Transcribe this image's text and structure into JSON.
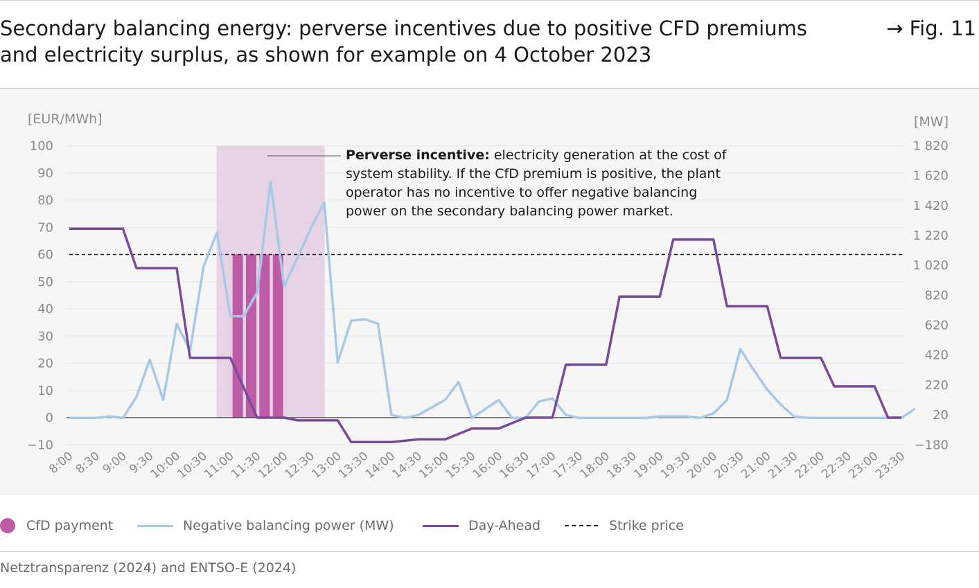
{
  "header": {
    "title_line1": "Secondary balancing energy: perverse incentives due to positive CFD premiums",
    "title_line2": "and electricity surplus, as shown for example on 4 October 2023",
    "fig_label": "→ Fig. 11"
  },
  "source": "Netztransparenz (2024) and ENTSO-E (2024)",
  "colors": {
    "cfd": "#bd5ba6",
    "cfd_band": "#e6d4e6",
    "balancing": "#a8c8e8",
    "day_ahead": "#7a4a9a",
    "strike": "#1a1a1a",
    "panel": "#f6f6f6"
  },
  "annotation": {
    "bold": "Perverse incentive:",
    "line1": " electricity generation at the cost of",
    "line2": "system stability. If the CfD premium is positive, the plant",
    "line3": "operator has no incentive to offer negative balancing",
    "line4": "power on the secondary balancing power market."
  },
  "legend": {
    "cfd": "CfD payment",
    "balancing": "Negative balancing power (MW)",
    "day_ahead": "Day-Ahead",
    "strike": "Strike price"
  },
  "chart_data": {
    "type": "line",
    "left_axis": {
      "label": "[EUR/MWh]",
      "ticks": [
        100,
        90,
        80,
        70,
        60,
        50,
        40,
        30,
        20,
        10,
        0,
        -10
      ],
      "tick_labels": [
        "100",
        "90",
        "80",
        "70",
        "60",
        "50",
        "40",
        "30",
        "20",
        "10",
        "0",
        "−10"
      ],
      "range": [
        -10,
        100
      ]
    },
    "right_axis": {
      "label": "[MW]",
      "ticks": [
        1820,
        1620,
        1420,
        1220,
        1020,
        820,
        620,
        420,
        220,
        20,
        -180
      ],
      "tick_labels": [
        "1 820",
        "1 620",
        "1 420",
        "1 220",
        "1 020",
        "820",
        "620",
        "420",
        "220",
        "20",
        "−180"
      ],
      "range": [
        -180,
        1820
      ]
    },
    "x_labels": [
      "8:00",
      "8:30",
      "9:00",
      "9:30",
      "10:00",
      "10:30",
      "11:00",
      "11:30",
      "12:00",
      "12:30",
      "13:00",
      "13:30",
      "14:00",
      "14:30",
      "15:00",
      "15:30",
      "16:00",
      "16:30",
      "17:00",
      "17:30",
      "18:00",
      "18:30",
      "19:00",
      "19:30",
      "20:00",
      "20:30",
      "21:00",
      "21:30",
      "22:00",
      "22:30",
      "23:00",
      "23:30"
    ],
    "strike_price": 60,
    "cfd_window": {
      "start": "10:45",
      "end": "12:45"
    },
    "cfd_bars": [
      {
        "time": "11:00",
        "value": 60
      },
      {
        "time": "11:15",
        "value": 60
      },
      {
        "time": "11:30",
        "value": 60
      },
      {
        "time": "11:45",
        "value": 60
      }
    ],
    "series": [
      {
        "name": "Day-Ahead",
        "axis": "left",
        "times": [
          "8:00",
          "9:00",
          "9:15",
          "10:00",
          "10:15",
          "11:00",
          "11:30",
          "12:00",
          "12:15",
          "12:30",
          "13:00",
          "13:15",
          "14:00",
          "14:30",
          "15:00",
          "15:30",
          "16:00",
          "16:30",
          "17:00",
          "17:15",
          "18:00",
          "18:15",
          "19:00",
          "19:15",
          "20:00",
          "20:15",
          "21:00",
          "21:15",
          "22:00",
          "22:15",
          "23:00",
          "23:15",
          "23:30"
        ],
        "values": [
          69.5,
          69.5,
          55,
          55,
          22,
          22,
          0,
          0,
          -1,
          -1,
          -1,
          -9,
          -9,
          -8,
          -8,
          -4,
          -4,
          0,
          0,
          19.5,
          19.5,
          44.5,
          44.5,
          65.5,
          65.5,
          41,
          41,
          22,
          22,
          11.5,
          11.5,
          0,
          0
        ]
      },
      {
        "name": "Negative balancing power (MW)",
        "axis": "right",
        "times": [
          "8:00",
          "8:15",
          "8:30",
          "8:45",
          "9:00",
          "9:15",
          "9:30",
          "9:45",
          "10:00",
          "10:15",
          "10:30",
          "10:45",
          "11:00",
          "11:15",
          "11:30",
          "11:45",
          "12:00",
          "12:15",
          "12:30",
          "12:45",
          "13:00",
          "13:15",
          "13:30",
          "13:45",
          "14:00",
          "14:15",
          "14:30",
          "14:45",
          "15:00",
          "15:15",
          "15:30",
          "15:45",
          "16:00",
          "16:15",
          "16:30",
          "16:45",
          "17:00",
          "17:15",
          "17:30",
          "17:45",
          "18:00",
          "18:15",
          "18:30",
          "18:45",
          "19:00",
          "19:15",
          "19:30",
          "19:45",
          "20:00",
          "20:15",
          "20:30",
          "20:45",
          "21:00",
          "21:15",
          "21:30",
          "21:45",
          "22:00",
          "22:15",
          "22:30",
          "22:45",
          "23:00",
          "23:15",
          "23:30",
          "23:45"
        ],
        "values": [
          0,
          0,
          0,
          10,
          0,
          140,
          390,
          120,
          630,
          450,
          1010,
          1240,
          680,
          680,
          840,
          1580,
          880,
          1070,
          1270,
          1440,
          370,
          650,
          660,
          630,
          20,
          0,
          20,
          70,
          120,
          240,
          0,
          60,
          120,
          0,
          0,
          110,
          130,
          20,
          0,
          0,
          0,
          0,
          0,
          0,
          10,
          10,
          10,
          0,
          30,
          120,
          460,
          320,
          190,
          90,
          10,
          0,
          0,
          0,
          0,
          0,
          0,
          0,
          0,
          60
        ]
      }
    ]
  }
}
